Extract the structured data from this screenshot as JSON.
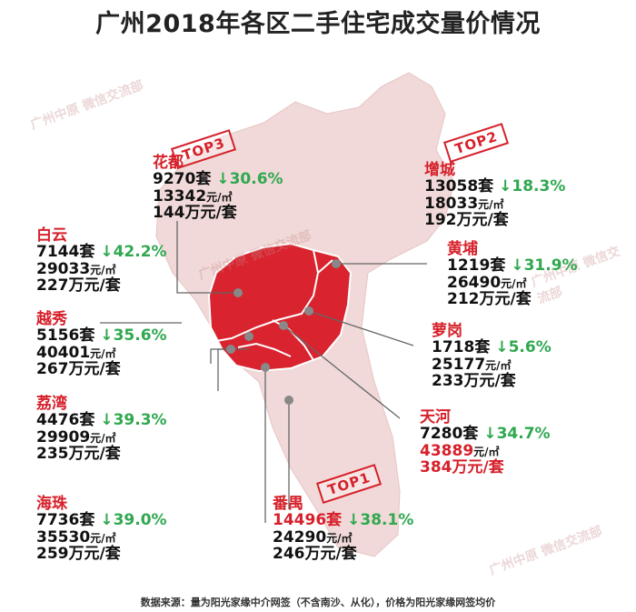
{
  "title": "广州2018年各区二手住宅成交量价情况",
  "units": {
    "set": "套",
    "price": "元/㎡",
    "total": "万元/套"
  },
  "districts": {
    "huadu": {
      "name": "花都",
      "deals": "9270",
      "change": "↓30.6%",
      "price": "13342",
      "total": "144"
    },
    "zengcheng": {
      "name": "增城",
      "deals": "13058",
      "change": "↓18.3%",
      "price": "18033",
      "total": "192"
    },
    "baiyun": {
      "name": "白云",
      "deals": "7144",
      "change": "↓42.2%",
      "price": "29033",
      "total": "227"
    },
    "huangpu": {
      "name": "黄埔",
      "deals": "1219",
      "change": "↓31.9%",
      "price": "26490",
      "total": "212"
    },
    "yuexiu": {
      "name": "越秀",
      "deals": "5156",
      "change": "↓35.6%",
      "price": "40401",
      "total": "267"
    },
    "luogang": {
      "name": "萝岗",
      "deals": "1718",
      "change": "↓5.6%",
      "price": "25177",
      "total": "233"
    },
    "liwan": {
      "name": "荔湾",
      "deals": "4476",
      "change": "↓39.3%",
      "price": "29909",
      "total": "235"
    },
    "tianhe": {
      "name": "天河",
      "deals": "7280",
      "change": "↓34.7%",
      "price": "43889",
      "total": "384"
    },
    "haizhu": {
      "name": "海珠",
      "deals": "7736",
      "change": "↓39.0%",
      "price": "35530",
      "total": "259"
    },
    "panyu": {
      "name": "番禺",
      "deals": "14496",
      "change": "↓38.1%",
      "price": "24290",
      "total": "246"
    }
  },
  "badges": {
    "top1": "TOP1",
    "top2": "TOP2",
    "top3": "TOP3"
  },
  "watermark": "广州中原 微信交流部",
  "footer": "数据来源：量为阳光家缘中介网签（不含南沙、从化），价格为阳光家缘网签均价",
  "colors": {
    "map_light": "#f0d9d8",
    "map_core": "#d9232e",
    "accent": "#d6202a",
    "down": "#2fa84f"
  }
}
